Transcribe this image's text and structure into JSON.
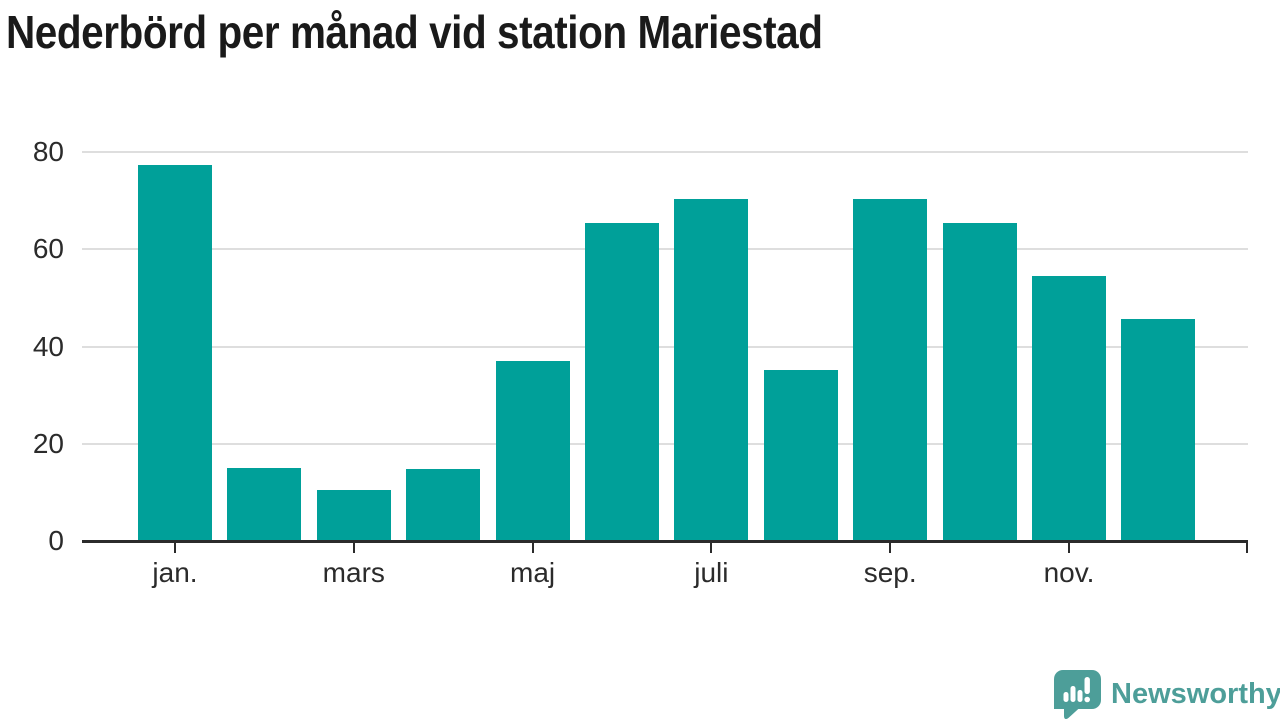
{
  "chart_data": {
    "type": "bar",
    "title": "Nederbörd per månad vid station Mariestad",
    "n_bars": 12,
    "values": [
      77.4,
      15.1,
      10.5,
      14.8,
      37.1,
      65.5,
      70.4,
      35.1,
      70.4,
      65.3,
      54.4,
      45.7
    ],
    "ylim": [
      0,
      80
    ],
    "yticks": [
      0,
      20,
      40,
      60,
      80
    ],
    "x_tick_labels": [
      {
        "index": 0,
        "label": "jan."
      },
      {
        "index": 2,
        "label": "mars"
      },
      {
        "index": 4,
        "label": "maj"
      },
      {
        "index": 6,
        "label": "juli"
      },
      {
        "index": 8,
        "label": "sep."
      },
      {
        "index": 10,
        "label": "nov."
      }
    ],
    "grid": true,
    "legend": "none",
    "colors": {
      "bar": "#00a099",
      "axis": "#2b2b2b",
      "grid": "#dedede",
      "tick_label": "#2b2b2b",
      "title": "#1a1a1a"
    }
  },
  "branding": {
    "name": "Newsworthy",
    "color": "#4d9e99",
    "icon": "speech-bubble-bar-chart"
  }
}
